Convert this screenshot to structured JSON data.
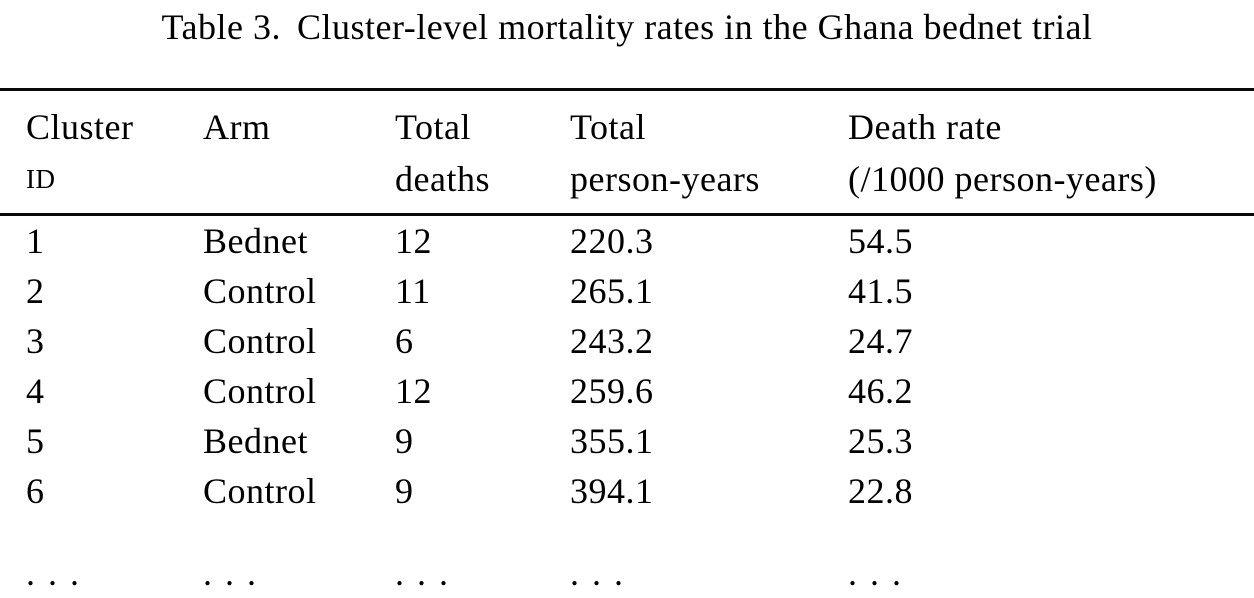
{
  "title": {
    "label": "Table 3.",
    "caption": "Cluster-level mortality rates in the Ghana bednet trial"
  },
  "columns": [
    {
      "line1": "Cluster",
      "line2": "ID"
    },
    {
      "line1": "Arm",
      "line2": ""
    },
    {
      "line1": "Total",
      "line2": "deaths"
    },
    {
      "line1": "Total",
      "line2": "person-years"
    },
    {
      "line1": "Death rate",
      "line2": "(/1000 person-years)"
    }
  ],
  "rows": [
    [
      "1",
      "Bednet",
      "12",
      "220.3",
      "54.5"
    ],
    [
      "2",
      "Control",
      "11",
      "265.1",
      "41.5"
    ],
    [
      "3",
      "Control",
      "6",
      "243.2",
      "24.7"
    ],
    [
      "4",
      "Control",
      "12",
      "259.6",
      "46.2"
    ],
    [
      "5",
      "Bednet",
      "9",
      "355.1",
      "25.3"
    ],
    [
      "6",
      "Control",
      "9",
      "394.1",
      "22.8"
    ],
    [
      ". . .",
      ". . .",
      ". . .",
      ". . .",
      ". . ."
    ]
  ],
  "colors": {
    "text": "#000000",
    "background": "#ffffff",
    "rule": "#0a0a0a"
  }
}
